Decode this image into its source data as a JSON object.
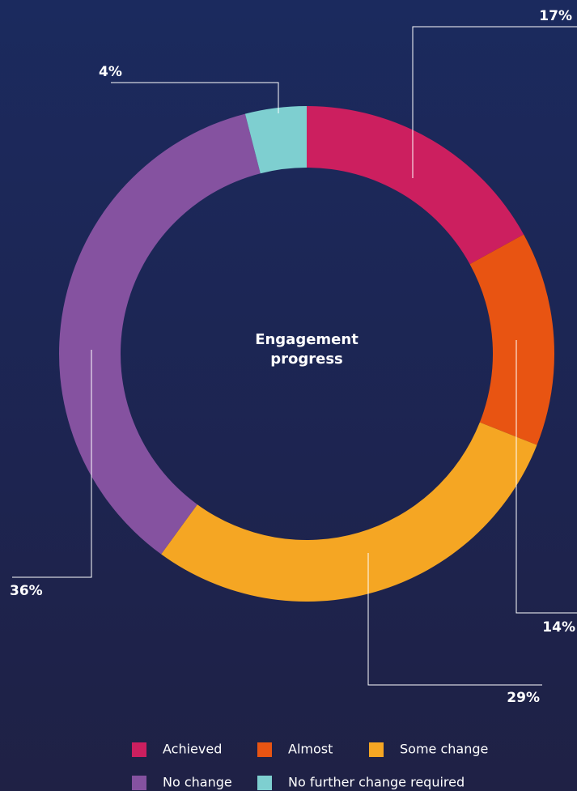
{
  "chart_data": {
    "type": "pie",
    "title": "Engagement progress",
    "categories": [
      "Achieved",
      "Almost",
      "Some change",
      "No change",
      "No further change required"
    ],
    "values": [
      17,
      14,
      29,
      36,
      4
    ],
    "value_labels": [
      "17%",
      "14%",
      "29%",
      "36%",
      "4%"
    ],
    "colors": [
      "#cc1f5f",
      "#e85412",
      "#f5a623",
      "#8552a0",
      "#7ecfd0"
    ],
    "legend": "bottom"
  }
}
